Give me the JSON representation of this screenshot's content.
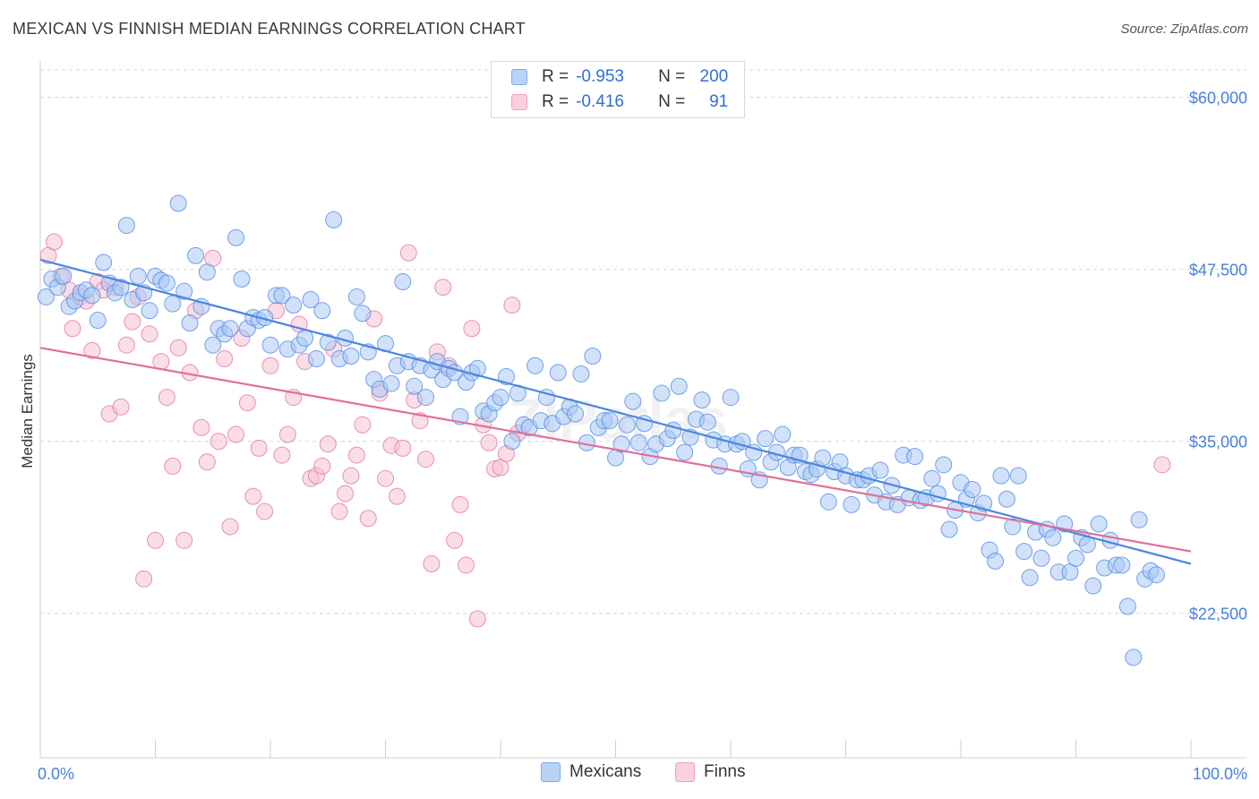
{
  "title": "MEXICAN VS FINNISH MEDIAN EARNINGS CORRELATION CHART",
  "source": "Source: ZipAtlas.com",
  "watermark": "ZIPatlas",
  "legend": {
    "rows": [
      {
        "r_label": "R =",
        "r_value": "-0.953",
        "n_label": "N =",
        "n_value": "200",
        "color": "#7aaaf0"
      },
      {
        "r_label": "R =",
        "r_value": "-0.416",
        "n_label": "N =",
        "n_value": "91",
        "color": "#f0a0bc"
      }
    ]
  },
  "bottom_legend": [
    {
      "label": "Mexicans",
      "color": "#7aaaf0"
    },
    {
      "label": "Finns",
      "color": "#f0a0bc"
    }
  ],
  "chart_data": {
    "type": "scatter",
    "title": "MEXICAN VS FINNISH MEDIAN EARNINGS CORRELATION CHART",
    "xlabel": "",
    "ylabel": "Median Earnings",
    "xlim": [
      0,
      100
    ],
    "ylim": [
      12000,
      62000
    ],
    "x_tick_labels": [
      "0.0%",
      "100.0%"
    ],
    "y_ticks": [
      22500,
      35000,
      47500,
      60000
    ],
    "y_tick_labels": [
      "$22,500",
      "$35,000",
      "$47,500",
      "$60,000"
    ],
    "grid": true,
    "legend_position": "top-center",
    "series": [
      {
        "name": "Mexicans",
        "color": "#4a86e0",
        "fill": "#a9c8f4",
        "trend": {
          "x": [
            0,
            100
          ],
          "y": [
            48200,
            26100
          ]
        },
        "points": [
          [
            0.5,
            45.5
          ],
          [
            1,
            46.8
          ],
          [
            1.5,
            46.2
          ],
          [
            2,
            47
          ],
          [
            2.5,
            44.8
          ],
          [
            3,
            45.2
          ],
          [
            3.5,
            45.8
          ],
          [
            4,
            46
          ],
          [
            4.5,
            45.6
          ],
          [
            5,
            43.8
          ],
          [
            5.5,
            48
          ],
          [
            6,
            46.5
          ],
          [
            6.5,
            45.8
          ],
          [
            7,
            46.2
          ],
          [
            7.5,
            50.7
          ],
          [
            8,
            45.3
          ],
          [
            8.5,
            47
          ],
          [
            9,
            45.8
          ],
          [
            9.5,
            44.5
          ],
          [
            10,
            47
          ],
          [
            10.5,
            46.7
          ],
          [
            11,
            46.5
          ],
          [
            11.5,
            45
          ],
          [
            12,
            52.3
          ],
          [
            12.5,
            45.9
          ],
          [
            13,
            43.6
          ],
          [
            13.5,
            48.5
          ],
          [
            14,
            44.8
          ],
          [
            14.5,
            47.3
          ],
          [
            15,
            42
          ],
          [
            15.5,
            43.2
          ],
          [
            16,
            42.8
          ],
          [
            16.5,
            43.2
          ],
          [
            17,
            49.8
          ],
          [
            17.5,
            46.8
          ],
          [
            18,
            43.2
          ],
          [
            18.5,
            44
          ],
          [
            19,
            43.8
          ],
          [
            19.5,
            44
          ],
          [
            20,
            42
          ],
          [
            20.5,
            45.6
          ],
          [
            21,
            45.6
          ],
          [
            21.5,
            41.7
          ],
          [
            22,
            44.9
          ],
          [
            22.5,
            42
          ],
          [
            23,
            42.5
          ],
          [
            23.5,
            45.3
          ],
          [
            24,
            41
          ],
          [
            24.5,
            44.5
          ],
          [
            25,
            42.2
          ],
          [
            25.5,
            51.1
          ],
          [
            26,
            41
          ],
          [
            26.5,
            42.5
          ],
          [
            27,
            41.2
          ],
          [
            27.5,
            45.5
          ],
          [
            28,
            44.3
          ],
          [
            28.5,
            41.5
          ],
          [
            29,
            39.5
          ],
          [
            29.5,
            38.8
          ],
          [
            30,
            42.1
          ],
          [
            30.5,
            39.2
          ],
          [
            31,
            40.5
          ],
          [
            31.5,
            46.6
          ],
          [
            32,
            40.8
          ],
          [
            32.5,
            39
          ],
          [
            33,
            40.5
          ],
          [
            33.5,
            38.2
          ],
          [
            34,
            40.2
          ],
          [
            34.5,
            40.8
          ],
          [
            35,
            39.5
          ],
          [
            35.5,
            40.3
          ],
          [
            36,
            40
          ],
          [
            36.5,
            36.8
          ],
          [
            37,
            39.3
          ],
          [
            37.5,
            40
          ],
          [
            38,
            40.3
          ],
          [
            38.5,
            37.2
          ],
          [
            39,
            37
          ],
          [
            39.5,
            37.8
          ],
          [
            40,
            38.2
          ],
          [
            40.5,
            39.7
          ],
          [
            41,
            35
          ],
          [
            41.5,
            38.5
          ],
          [
            42,
            36.2
          ],
          [
            42.5,
            36
          ],
          [
            43,
            40.5
          ],
          [
            43.5,
            36.5
          ],
          [
            44,
            38.2
          ],
          [
            44.5,
            36.3
          ],
          [
            45,
            40
          ],
          [
            45.5,
            36.8
          ],
          [
            46,
            37.5
          ],
          [
            46.5,
            37
          ],
          [
            47,
            39.9
          ],
          [
            47.5,
            34.9
          ],
          [
            48,
            41.2
          ],
          [
            48.5,
            36
          ],
          [
            49,
            36.5
          ],
          [
            49.5,
            36.5
          ],
          [
            50,
            33.8
          ],
          [
            50.5,
            34.8
          ],
          [
            51,
            36.2
          ],
          [
            51.5,
            37.9
          ],
          [
            52,
            34.9
          ],
          [
            52.5,
            36.3
          ],
          [
            53,
            33.9
          ],
          [
            53.5,
            34.8
          ],
          [
            54,
            38.5
          ],
          [
            54.5,
            35.2
          ],
          [
            55,
            35.8
          ],
          [
            55.5,
            39
          ],
          [
            56,
            34.2
          ],
          [
            56.5,
            35.3
          ],
          [
            57,
            36.6
          ],
          [
            57.5,
            38
          ],
          [
            58,
            36.4
          ],
          [
            58.5,
            35.1
          ],
          [
            59,
            33.2
          ],
          [
            59.5,
            34.8
          ],
          [
            60,
            38.2
          ],
          [
            60.5,
            34.8
          ],
          [
            61,
            35
          ],
          [
            61.5,
            33
          ],
          [
            62,
            34.2
          ],
          [
            62.5,
            32.2
          ],
          [
            63,
            35.2
          ],
          [
            63.5,
            33.5
          ],
          [
            64,
            34.2
          ],
          [
            64.5,
            35.5
          ],
          [
            65,
            33.1
          ],
          [
            65.5,
            34
          ],
          [
            66,
            34
          ],
          [
            66.5,
            32.8
          ],
          [
            67,
            32.6
          ],
          [
            67.5,
            33
          ],
          [
            68,
            33.8
          ],
          [
            68.5,
            30.6
          ],
          [
            69,
            32.8
          ],
          [
            69.5,
            33.5
          ],
          [
            70,
            32.5
          ],
          [
            70.5,
            30.4
          ],
          [
            71,
            32.2
          ],
          [
            71.5,
            32.2
          ],
          [
            72,
            32.5
          ],
          [
            72.5,
            31.1
          ],
          [
            73,
            32.9
          ],
          [
            73.5,
            30.6
          ],
          [
            74,
            31.8
          ],
          [
            74.5,
            30.4
          ],
          [
            75,
            34
          ],
          [
            75.5,
            30.9
          ],
          [
            76,
            33.9
          ],
          [
            76.5,
            30.7
          ],
          [
            77,
            30.9
          ],
          [
            77.5,
            32.3
          ],
          [
            78,
            31.2
          ],
          [
            78.5,
            33.3
          ],
          [
            79,
            28.6
          ],
          [
            79.5,
            30
          ],
          [
            80,
            32
          ],
          [
            80.5,
            30.8
          ],
          [
            81,
            31.5
          ],
          [
            81.5,
            29.8
          ],
          [
            82,
            30.5
          ],
          [
            82.5,
            27.1
          ],
          [
            83,
            26.3
          ],
          [
            83.5,
            32.5
          ],
          [
            84,
            30.8
          ],
          [
            84.5,
            28.8
          ],
          [
            85,
            32.5
          ],
          [
            85.5,
            27
          ],
          [
            86,
            25.1
          ],
          [
            86.5,
            28.4
          ],
          [
            87,
            26.5
          ],
          [
            87.5,
            28.6
          ],
          [
            88,
            28
          ],
          [
            88.5,
            25.5
          ],
          [
            89,
            29
          ],
          [
            89.5,
            25.5
          ],
          [
            90,
            26.5
          ],
          [
            90.5,
            28
          ],
          [
            91,
            27.5
          ],
          [
            91.5,
            24.5
          ],
          [
            92,
            29
          ],
          [
            92.5,
            25.8
          ],
          [
            93,
            27.8
          ],
          [
            93.5,
            26
          ],
          [
            94,
            26
          ],
          [
            94.5,
            23
          ],
          [
            95,
            19.3
          ],
          [
            95.5,
            29.3
          ],
          [
            96,
            25
          ],
          [
            96.5,
            25.6
          ],
          [
            97,
            25.3
          ]
        ]
      },
      {
        "name": "Finns",
        "color": "#e0709a",
        "fill": "#f6c1d3",
        "trend": {
          "x": [
            0,
            100
          ],
          "y": [
            41800,
            27000
          ]
        },
        "points": [
          [
            0.7,
            48.5
          ],
          [
            1.2,
            49.5
          ],
          [
            1.8,
            47
          ],
          [
            2.5,
            46
          ],
          [
            2.8,
            43.2
          ],
          [
            3.5,
            45.5
          ],
          [
            4,
            45.2
          ],
          [
            4.5,
            41.6
          ],
          [
            5,
            46.6
          ],
          [
            5.5,
            46
          ],
          [
            6,
            37
          ],
          [
            6.5,
            46.2
          ],
          [
            7,
            37.5
          ],
          [
            7.5,
            42
          ],
          [
            8,
            43.7
          ],
          [
            8.5,
            45.5
          ],
          [
            9,
            25
          ],
          [
            9.5,
            42.8
          ],
          [
            10,
            27.8
          ],
          [
            10.5,
            40.8
          ],
          [
            11,
            38.2
          ],
          [
            11.5,
            33.2
          ],
          [
            12,
            41.8
          ],
          [
            12.5,
            27.8
          ],
          [
            13,
            40
          ],
          [
            13.5,
            44.5
          ],
          [
            14,
            36
          ],
          [
            14.5,
            33.5
          ],
          [
            15,
            48.3
          ],
          [
            15.5,
            35
          ],
          [
            16,
            41
          ],
          [
            16.5,
            28.8
          ],
          [
            17,
            35.5
          ],
          [
            17.5,
            42.5
          ],
          [
            18,
            37.8
          ],
          [
            18.5,
            31
          ],
          [
            19,
            34.5
          ],
          [
            19.5,
            29.9
          ],
          [
            20,
            40.5
          ],
          [
            20.5,
            44.5
          ],
          [
            21,
            34
          ],
          [
            21.5,
            35.5
          ],
          [
            22,
            38.2
          ],
          [
            22.5,
            43.5
          ],
          [
            23,
            40.8
          ],
          [
            23.5,
            32.3
          ],
          [
            24,
            32.5
          ],
          [
            24.5,
            33.2
          ],
          [
            25,
            34.8
          ],
          [
            25.5,
            41.7
          ],
          [
            26,
            29.9
          ],
          [
            26.5,
            31.2
          ],
          [
            27,
            32.5
          ],
          [
            27.5,
            34
          ],
          [
            28,
            36.2
          ],
          [
            28.5,
            29.4
          ],
          [
            29,
            43.9
          ],
          [
            29.5,
            38.5
          ],
          [
            30,
            32.3
          ],
          [
            30.5,
            34.7
          ],
          [
            31,
            31
          ],
          [
            31.5,
            34.5
          ],
          [
            32,
            48.7
          ],
          [
            32.5,
            38
          ],
          [
            33,
            36.5
          ],
          [
            33.5,
            33.7
          ],
          [
            34,
            26.1
          ],
          [
            34.5,
            41.5
          ],
          [
            35,
            46.2
          ],
          [
            35.5,
            40.5
          ],
          [
            36,
            27.8
          ],
          [
            36.5,
            30.4
          ],
          [
            37,
            26
          ],
          [
            37.5,
            43.2
          ],
          [
            38,
            22.1
          ],
          [
            38.5,
            36.2
          ],
          [
            39,
            34.9
          ],
          [
            39.5,
            33
          ],
          [
            40,
            33.1
          ],
          [
            40.5,
            34.1
          ],
          [
            41,
            44.9
          ],
          [
            41.5,
            35.6
          ],
          [
            97.5,
            33.3
          ]
        ]
      }
    ]
  }
}
